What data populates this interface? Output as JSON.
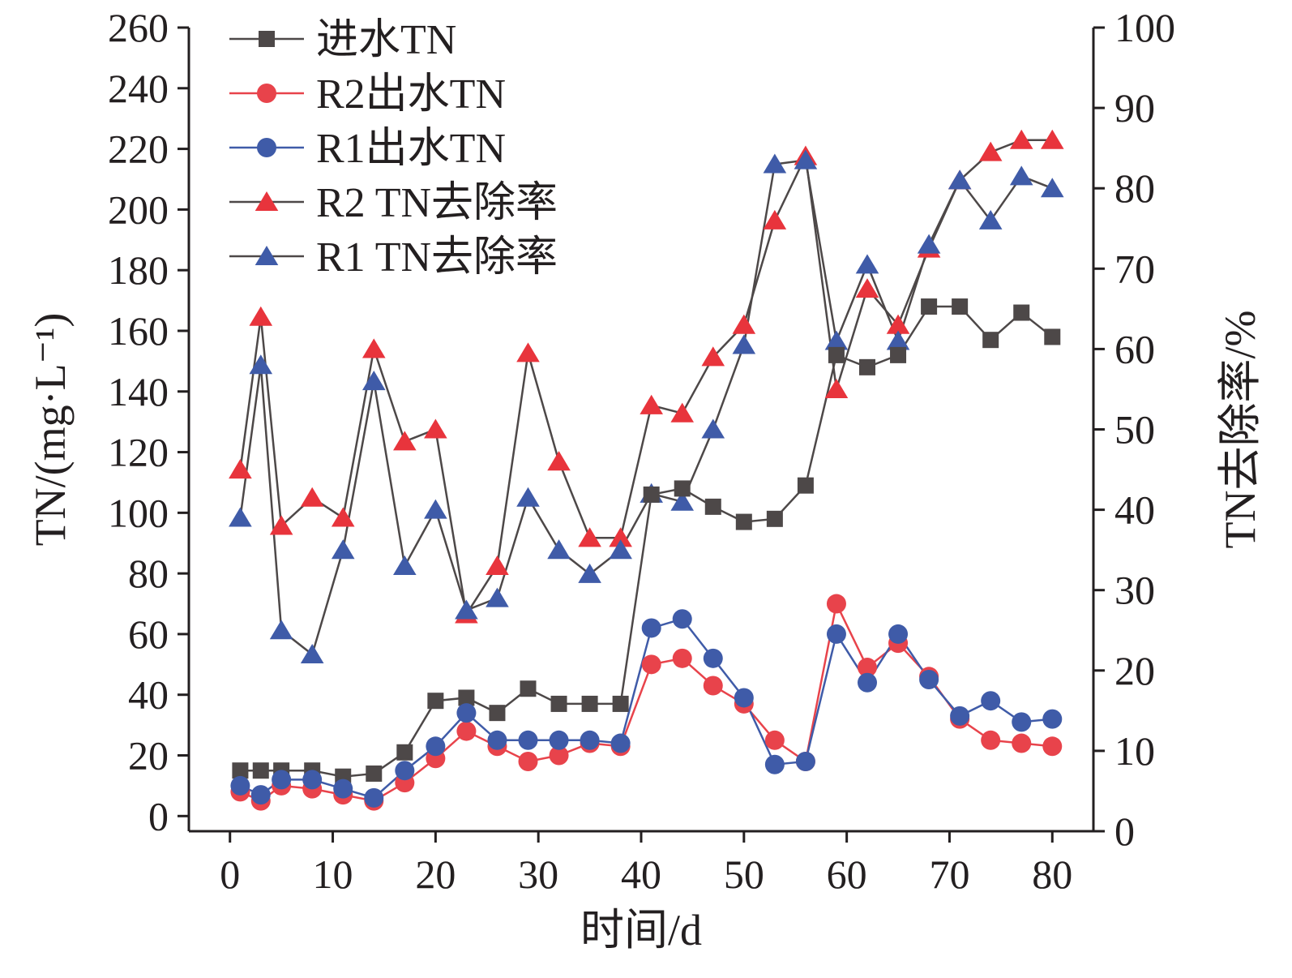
{
  "chart_data": {
    "type": "line",
    "xlabel": "时间/d",
    "ylabel_left": "TN/(mg·L⁻¹)",
    "ylabel_right": "TN去除率/%",
    "xlim": [
      -4,
      84
    ],
    "ylim_left": [
      -5,
      260
    ],
    "ylim_right": [
      0,
      100
    ],
    "x_ticks": [
      0,
      10,
      20,
      30,
      40,
      50,
      60,
      70,
      80
    ],
    "y_ticks_left": [
      0,
      20,
      40,
      60,
      80,
      100,
      120,
      140,
      160,
      180,
      200,
      220,
      240,
      260
    ],
    "y_ticks_right": [
      0,
      10,
      20,
      30,
      40,
      50,
      60,
      70,
      80,
      90,
      100
    ],
    "grid": false,
    "legend_position": "top-left",
    "x": [
      1,
      3,
      5,
      8,
      11,
      14,
      17,
      20,
      23,
      26,
      29,
      32,
      35,
      38,
      41,
      44,
      47,
      50,
      53,
      56,
      59,
      62,
      65,
      68,
      71,
      74,
      77,
      80
    ],
    "series": [
      {
        "name": "进水TN",
        "axis": "left",
        "marker": "square",
        "color": "#4d4848",
        "line_color": "#4d4848",
        "values": [
          15,
          15,
          15,
          15,
          13,
          14,
          21,
          38,
          39,
          34,
          42,
          37,
          37,
          37,
          106,
          108,
          102,
          97,
          98,
          109,
          152,
          148,
          152,
          168,
          168,
          157,
          166,
          158
        ]
      },
      {
        "name": "R2出水TN",
        "axis": "left",
        "marker": "circle",
        "color": "#e8434b",
        "line_color": "#e8434b",
        "values": [
          8,
          5,
          10,
          9,
          7,
          5,
          11,
          19,
          28,
          23,
          18,
          20,
          24,
          23,
          50,
          52,
          43,
          37,
          25,
          18,
          70,
          49,
          57,
          46,
          32,
          25,
          24,
          23
        ]
      },
      {
        "name": "R1出水TN",
        "axis": "left",
        "marker": "circle",
        "color": "#3f5ba8",
        "line_color": "#3f5ba8",
        "values": [
          10,
          7,
          12,
          12,
          9,
          6,
          15,
          23,
          34,
          25,
          25,
          25,
          25,
          24,
          62,
          65,
          52,
          39,
          17,
          18,
          60,
          44,
          60,
          45,
          33,
          38,
          31,
          32
        ]
      },
      {
        "name": "R2 TN去除率",
        "axis": "right",
        "marker": "triangle",
        "color": "#e8343c",
        "line_color": "#4d4848",
        "values": [
          45,
          64,
          38,
          41.5,
          39,
          60,
          48.5,
          50,
          27,
          33,
          59.5,
          46,
          36.5,
          36.5,
          53,
          52,
          59,
          63,
          76,
          84,
          55,
          67.5,
          63,
          72.5,
          81,
          84.5,
          86,
          86
        ]
      },
      {
        "name": "R1 TN去除率",
        "axis": "right",
        "marker": "triangle",
        "color": "#3f5ba8",
        "line_color": "#4d4848",
        "values": [
          39,
          58,
          25,
          22,
          35,
          56,
          33,
          40,
          27.5,
          29,
          41.5,
          35,
          32,
          35,
          42,
          41,
          50,
          60.5,
          83,
          83.5,
          61,
          70.5,
          61,
          73,
          81,
          76,
          81.5,
          80
        ]
      }
    ]
  }
}
